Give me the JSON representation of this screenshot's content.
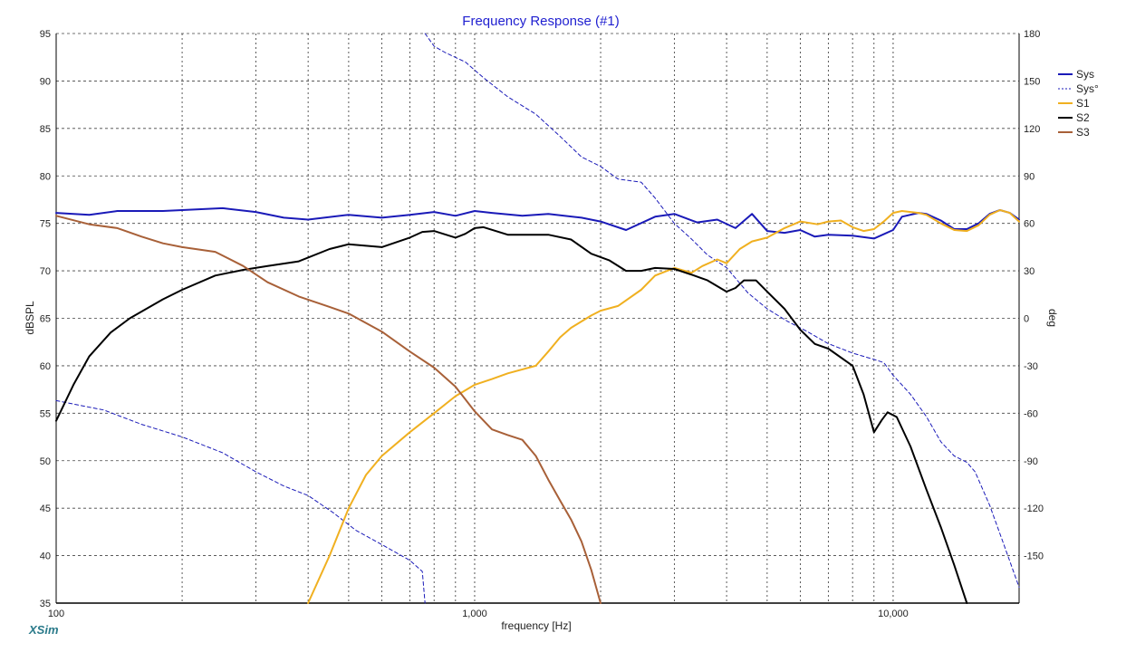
{
  "chart_data": {
    "type": "line",
    "title": "Frequency Response (#1)",
    "xlabel": "frequency [Hz]",
    "ylabel": "dBSPL",
    "y2label": "deg",
    "xscale": "log",
    "xlim": [
      100,
      20000
    ],
    "ylim": [
      35,
      95
    ],
    "y2lim": [
      -180,
      180
    ],
    "x_tick_labels": [
      {
        "value": 100,
        "label": "100"
      },
      {
        "value": 1000,
        "label": "1,000"
      },
      {
        "value": 10000,
        "label": "10,000"
      }
    ],
    "y_ticks": [
      35,
      40,
      45,
      50,
      55,
      60,
      65,
      70,
      75,
      80,
      85,
      90,
      95
    ],
    "y2_ticks": [
      -150,
      -120,
      -90,
      -60,
      -30,
      0,
      30,
      60,
      90,
      120,
      150,
      180
    ],
    "grid": true,
    "legend_position": "top-right",
    "series": [
      {
        "name": "Sys",
        "axis": "left",
        "color": "#1a1ab8",
        "dash": "none",
        "width": 2,
        "points": [
          [
            100,
            76.1
          ],
          [
            120,
            75.9
          ],
          [
            140,
            76.3
          ],
          [
            180,
            76.3
          ],
          [
            250,
            76.6
          ],
          [
            300,
            76.2
          ],
          [
            350,
            75.6
          ],
          [
            400,
            75.4
          ],
          [
            500,
            75.9
          ],
          [
            600,
            75.6
          ],
          [
            700,
            75.9
          ],
          [
            800,
            76.2
          ],
          [
            900,
            75.8
          ],
          [
            1000,
            76.3
          ],
          [
            1100,
            76.1
          ],
          [
            1300,
            75.8
          ],
          [
            1500,
            76.0
          ],
          [
            1800,
            75.6
          ],
          [
            2000,
            75.2
          ],
          [
            2300,
            74.3
          ],
          [
            2700,
            75.7
          ],
          [
            3000,
            76.0
          ],
          [
            3400,
            75.1
          ],
          [
            3800,
            75.4
          ],
          [
            4200,
            74.5
          ],
          [
            4600,
            76.0
          ],
          [
            5000,
            74.2
          ],
          [
            5500,
            74.0
          ],
          [
            6000,
            74.3
          ],
          [
            6500,
            73.6
          ],
          [
            7000,
            73.8
          ],
          [
            8000,
            73.7
          ],
          [
            9000,
            73.4
          ],
          [
            10000,
            74.3
          ],
          [
            10500,
            75.7
          ],
          [
            11500,
            76.1
          ],
          [
            12000,
            76.0
          ],
          [
            13000,
            75.3
          ],
          [
            14000,
            74.4
          ],
          [
            15000,
            74.4
          ],
          [
            16000,
            75.0
          ],
          [
            17000,
            76.0
          ],
          [
            18000,
            76.4
          ],
          [
            19000,
            76.1
          ],
          [
            20000,
            75.4
          ]
        ]
      },
      {
        "name": "Sys°",
        "axis": "right",
        "color": "#1a1ab8",
        "dash": "4,3",
        "width": 1,
        "points": [
          [
            100,
            -52
          ],
          [
            130,
            -58
          ],
          [
            160,
            -67
          ],
          [
            200,
            -75
          ],
          [
            250,
            -85
          ],
          [
            300,
            -97
          ],
          [
            350,
            -106
          ],
          [
            400,
            -112
          ],
          [
            460,
            -123
          ],
          [
            520,
            -134
          ],
          [
            600,
            -143
          ],
          [
            700,
            -153
          ],
          [
            750,
            -160
          ],
          [
            761,
            -180
          ]
        ]
      },
      {
        "name": "Sys° wrap",
        "axis": "right",
        "color": "#1a1ab8",
        "dash": "4,3",
        "width": 1,
        "points": [
          [
            761,
            180
          ],
          [
            800,
            172
          ],
          [
            850,
            168
          ],
          [
            950,
            162
          ],
          [
            1050,
            152
          ],
          [
            1200,
            140
          ],
          [
            1400,
            129
          ],
          [
            1600,
            115
          ],
          [
            1800,
            102
          ],
          [
            2000,
            96
          ],
          [
            2200,
            88
          ],
          [
            2500,
            86
          ],
          [
            2700,
            76
          ],
          [
            3000,
            60
          ],
          [
            3300,
            50
          ],
          [
            3600,
            40
          ],
          [
            4000,
            32
          ],
          [
            4500,
            16
          ],
          [
            5000,
            6
          ],
          [
            5600,
            -2
          ],
          [
            6200,
            -8
          ],
          [
            7000,
            -16
          ],
          [
            8000,
            -22
          ],
          [
            9000,
            -26
          ],
          [
            9500,
            -28
          ],
          [
            10000,
            -36
          ],
          [
            11000,
            -48
          ],
          [
            12000,
            -62
          ],
          [
            13000,
            -78
          ],
          [
            14000,
            -87
          ],
          [
            15000,
            -91
          ],
          [
            15700,
            -97
          ],
          [
            17000,
            -118
          ],
          [
            18500,
            -145
          ],
          [
            20000,
            -170
          ]
        ]
      },
      {
        "name": "S1",
        "axis": "left",
        "color": "#f0b020",
        "dash": "none",
        "width": 2,
        "points": [
          [
            400,
            35
          ],
          [
            450,
            40
          ],
          [
            500,
            45
          ],
          [
            550,
            48.5
          ],
          [
            600,
            50.5
          ],
          [
            700,
            53
          ],
          [
            800,
            55
          ],
          [
            900,
            56.8
          ],
          [
            1000,
            58
          ],
          [
            1100,
            58.6
          ],
          [
            1200,
            59.2
          ],
          [
            1400,
            60
          ],
          [
            1500,
            61.5
          ],
          [
            1600,
            63
          ],
          [
            1700,
            64
          ],
          [
            1900,
            65.3
          ],
          [
            2000,
            65.8
          ],
          [
            2200,
            66.3
          ],
          [
            2500,
            68
          ],
          [
            2700,
            69.5
          ],
          [
            3000,
            70.3
          ],
          [
            3300,
            69.8
          ],
          [
            3500,
            70.5
          ],
          [
            3800,
            71.2
          ],
          [
            4000,
            70.8
          ],
          [
            4300,
            72.3
          ],
          [
            4600,
            73.1
          ],
          [
            5000,
            73.5
          ],
          [
            5500,
            74.5
          ],
          [
            6000,
            75.2
          ],
          [
            6600,
            74.9
          ],
          [
            7000,
            75.2
          ],
          [
            7500,
            75.3
          ],
          [
            8000,
            74.6
          ],
          [
            8500,
            74.2
          ],
          [
            9000,
            74.4
          ],
          [
            9500,
            75.2
          ],
          [
            10000,
            76.1
          ],
          [
            10500,
            76.3
          ],
          [
            11500,
            76.1
          ],
          [
            12000,
            75.9
          ],
          [
            13000,
            75.0
          ],
          [
            14000,
            74.3
          ],
          [
            15000,
            74.2
          ],
          [
            16000,
            74.8
          ],
          [
            17000,
            75.9
          ],
          [
            18000,
            76.4
          ],
          [
            19000,
            76.1
          ],
          [
            20000,
            75.2
          ]
        ]
      },
      {
        "name": "S2",
        "axis": "left",
        "color": "#000000",
        "dash": "none",
        "width": 2,
        "points": [
          [
            100,
            54.2
          ],
          [
            110,
            58
          ],
          [
            120,
            61
          ],
          [
            135,
            63.5
          ],
          [
            150,
            65
          ],
          [
            180,
            67
          ],
          [
            200,
            68
          ],
          [
            240,
            69.5
          ],
          [
            280,
            70.1
          ],
          [
            320,
            70.5
          ],
          [
            380,
            71
          ],
          [
            450,
            72.3
          ],
          [
            500,
            72.8
          ],
          [
            600,
            72.5
          ],
          [
            700,
            73.5
          ],
          [
            750,
            74.1
          ],
          [
            800,
            74.2
          ],
          [
            900,
            73.5
          ],
          [
            950,
            73.9
          ],
          [
            1000,
            74.5
          ],
          [
            1050,
            74.6
          ],
          [
            1200,
            73.8
          ],
          [
            1500,
            73.8
          ],
          [
            1700,
            73.3
          ],
          [
            1900,
            71.8
          ],
          [
            2100,
            71.1
          ],
          [
            2300,
            70
          ],
          [
            2500,
            70
          ],
          [
            2700,
            70.3
          ],
          [
            3000,
            70.2
          ],
          [
            3300,
            69.6
          ],
          [
            3600,
            69
          ],
          [
            4000,
            67.8
          ],
          [
            4200,
            68.2
          ],
          [
            4400,
            69
          ],
          [
            4700,
            69
          ],
          [
            5000,
            67.8
          ],
          [
            5500,
            66
          ],
          [
            6000,
            63.8
          ],
          [
            6500,
            62.3
          ],
          [
            7000,
            61.8
          ],
          [
            8000,
            60
          ],
          [
            8500,
            57
          ],
          [
            9000,
            53
          ],
          [
            9400,
            54.3
          ],
          [
            9700,
            55.1
          ],
          [
            10200,
            54.6
          ],
          [
            11000,
            51.5
          ],
          [
            12000,
            47
          ],
          [
            13000,
            43
          ],
          [
            14000,
            39
          ],
          [
            15000,
            35
          ]
        ]
      },
      {
        "name": "S3",
        "axis": "left",
        "color": "#a86038",
        "dash": "none",
        "width": 2,
        "points": [
          [
            100,
            75.8
          ],
          [
            120,
            74.9
          ],
          [
            140,
            74.5
          ],
          [
            160,
            73.6
          ],
          [
            180,
            72.9
          ],
          [
            200,
            72.5
          ],
          [
            240,
            72
          ],
          [
            280,
            70.5
          ],
          [
            320,
            68.8
          ],
          [
            380,
            67.3
          ],
          [
            450,
            66.2
          ],
          [
            500,
            65.5
          ],
          [
            600,
            63.6
          ],
          [
            700,
            61.5
          ],
          [
            800,
            59.8
          ],
          [
            900,
            57.8
          ],
          [
            1000,
            55.2
          ],
          [
            1100,
            53.3
          ],
          [
            1200,
            52.7
          ],
          [
            1300,
            52.2
          ],
          [
            1400,
            50.5
          ],
          [
            1500,
            48
          ],
          [
            1600,
            45.8
          ],
          [
            1700,
            43.8
          ],
          [
            1800,
            41.5
          ],
          [
            1900,
            38.5
          ],
          [
            2000,
            35
          ]
        ]
      }
    ]
  },
  "brand": "XSim"
}
